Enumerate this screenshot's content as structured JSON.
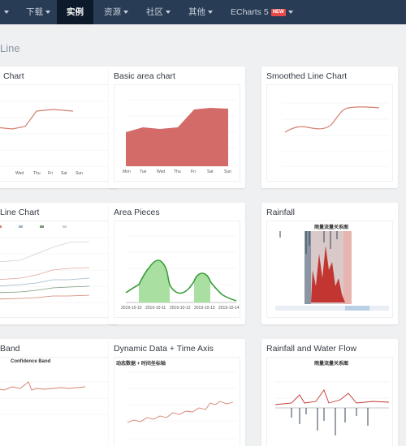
{
  "nav": {
    "items": [
      {
        "label": "下载",
        "caret": true
      },
      {
        "label": "实例",
        "active": true
      },
      {
        "label": "资源",
        "caret": true
      },
      {
        "label": "社区",
        "caret": true
      },
      {
        "label": "其他",
        "caret": true
      }
    ],
    "echarts_label": "ECharts 5",
    "echarts_badge": "NEW"
  },
  "section": {
    "title": "Line"
  },
  "cards": [
    {
      "title": "Chart"
    },
    {
      "title": "Basic area chart"
    },
    {
      "title": "Smoothed Line Chart"
    },
    {
      "title": "Line Chart"
    },
    {
      "title": "Area Pieces"
    },
    {
      "title": "Rainfall"
    },
    {
      "title": "Band"
    },
    {
      "title": "Dynamic Data + Time Axis"
    },
    {
      "title": "Rainfall and Water Flow"
    }
  ],
  "thumbs": {
    "confidence_title": "Confidence Band",
    "dynamic_title": "动态数据 + 时间坐标轴",
    "rainfall_title": "雨量流量关系图",
    "rainfall_water_title": "雨量流量关系图",
    "week_days": [
      "Mon",
      "Tue",
      "Wed",
      "Thu",
      "Fri",
      "Sat",
      "Sun"
    ],
    "area_pieces_dates": [
      "2019-10-10",
      "2019-10-11",
      "2019-10-12",
      "2019-10-13",
      "2019-10-14"
    ]
  },
  "colors": {
    "nav_bg": "#293c55",
    "nav_active": "#0d1a2b",
    "line": "#d4816f",
    "area": "#d36b68",
    "green": "#3a9e3a",
    "green_fill": "#a9e0a2",
    "rain_dark": "#334455",
    "rain_red": "#c23531"
  }
}
